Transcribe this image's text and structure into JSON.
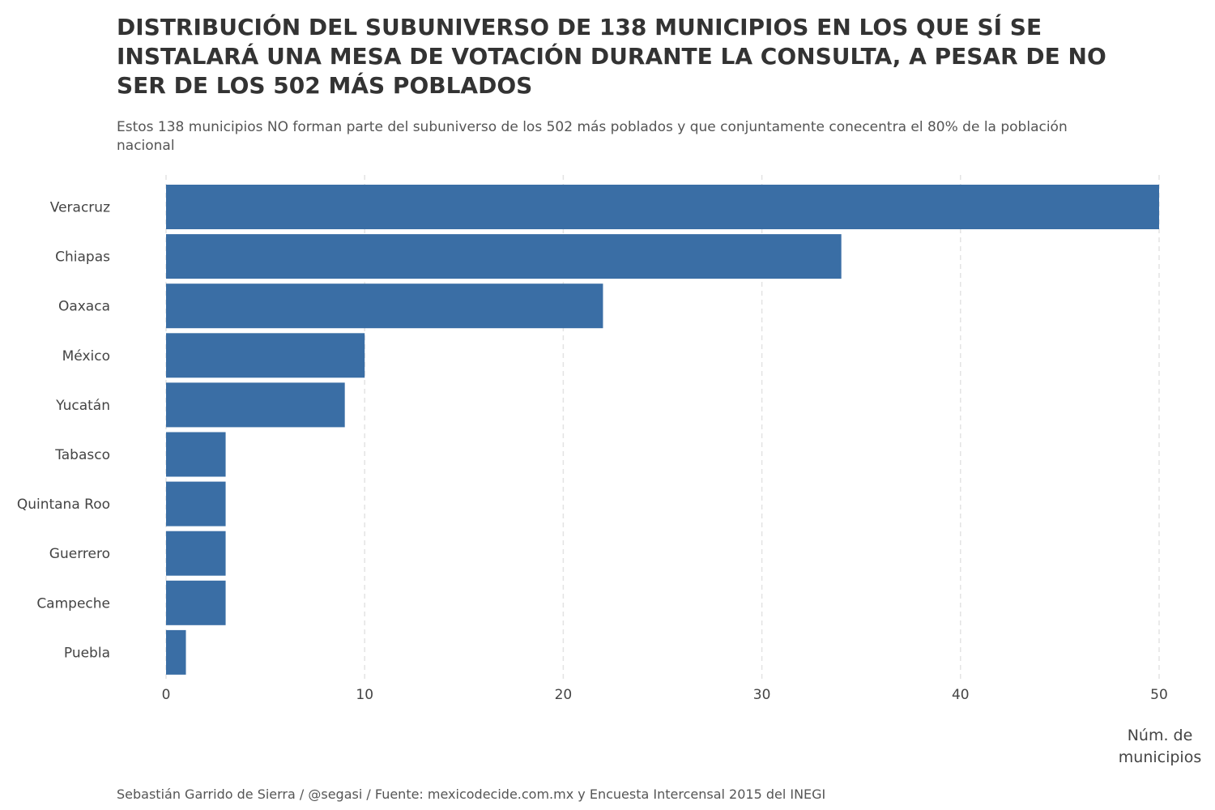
{
  "chart_data": {
    "type": "bar",
    "orientation": "horizontal",
    "title": "DISTRIBUCIÓN DEL SUBUNIVERSO DE 138 MUNICIPIOS EN LOS QUE SÍ SE INSTALARÁ UNA MESA DE VOTACIÓN DURANTE LA CONSULTA, A PESAR DE NO SER DE LOS 502 MÁS POBLADOS",
    "subtitle": "Estos 138 municipios NO forman parte del subuniverso de los 502 más poblados y que conjuntamente conecentra el 80% de la población nacional",
    "caption": "Sebastián Garrido de Sierra / @segasi / Fuente: mexicodecide.com.mx y Encuesta Intercensal 2015 del INEGI",
    "xlabel": "Núm. de municipios",
    "ylabel": "",
    "categories": [
      "Veracruz",
      "Chiapas",
      "Oaxaca",
      "México",
      "Yucatán",
      "Tabasco",
      "Quintana Roo",
      "Guerrero",
      "Campeche",
      "Puebla"
    ],
    "values": [
      50,
      34,
      22,
      10,
      9,
      3,
      3,
      3,
      3,
      1
    ],
    "xlim": [
      0,
      50
    ],
    "xticks": [
      "0",
      "10",
      "20",
      "30",
      "40",
      "50"
    ],
    "grid": "vertical dashed",
    "bar_color": "#3a6ea5",
    "grid_color": "#e3e3e3"
  }
}
